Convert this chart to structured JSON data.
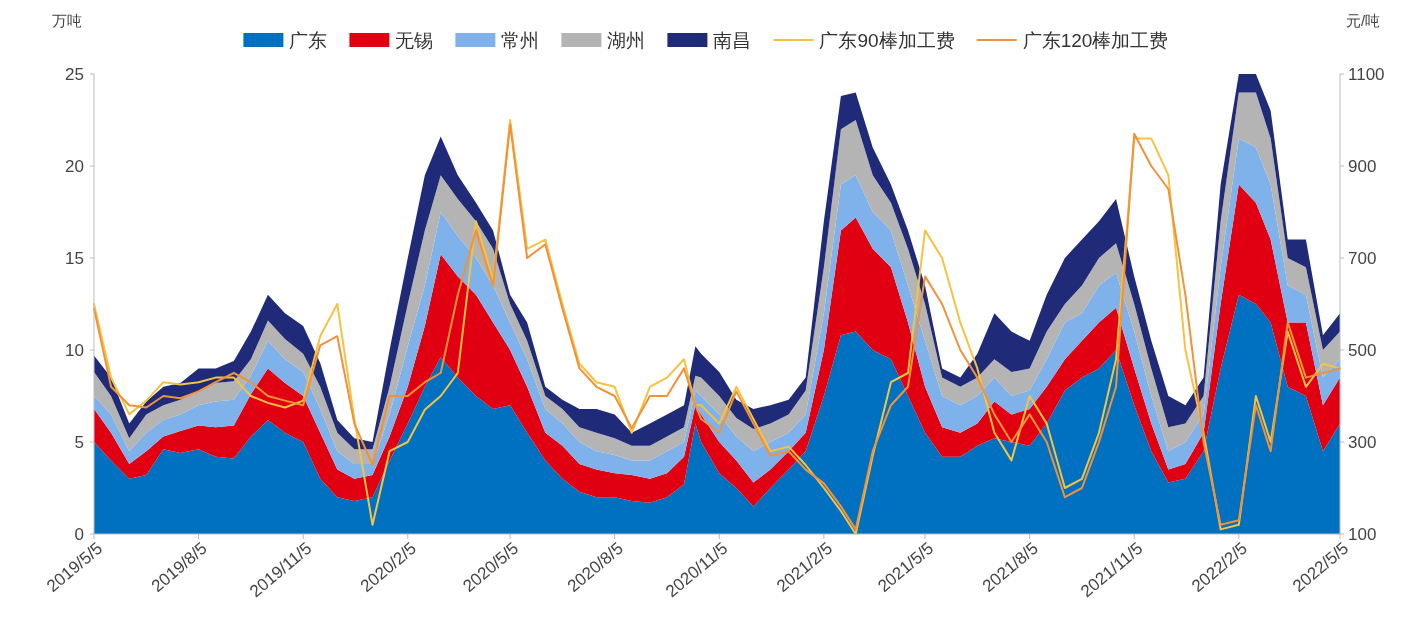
{
  "chart_data": {
    "type": "area",
    "stacked": true,
    "legend": "top",
    "ylabel": "万吨",
    "y2label": "元/吨",
    "xlim": [
      "2019-05-05",
      "2022-05-05"
    ],
    "xticks": [
      {
        "value": "2019-05-05",
        "label": "2019/5/5"
      },
      {
        "value": "2019-08-05",
        "label": "2019/8/5"
      },
      {
        "value": "2019-11-05",
        "label": "2019/11/5"
      },
      {
        "value": "2020-02-05",
        "label": "2020/2/5"
      },
      {
        "value": "2020-05-05",
        "label": "2020/5/5"
      },
      {
        "value": "2020-08-05",
        "label": "2020/8/5"
      },
      {
        "value": "2020-11-05",
        "label": "2020/11/5"
      },
      {
        "value": "2021-02-05",
        "label": "2021/2/5"
      },
      {
        "value": "2021-05-05",
        "label": "2021/5/5"
      },
      {
        "value": "2021-08-05",
        "label": "2021/8/5"
      },
      {
        "value": "2021-11-05",
        "label": "2021/11/5"
      },
      {
        "value": "2022-02-05",
        "label": "2022/2/5"
      },
      {
        "value": "2022-05-05",
        "label": "2022/5/5"
      }
    ],
    "ylim": [
      0,
      25
    ],
    "yticks": [
      0,
      5,
      10,
      15,
      20,
      25
    ],
    "y2lim": [
      100,
      1100
    ],
    "y2ticks": [
      100,
      300,
      500,
      700,
      900,
      1100
    ],
    "x": [
      "2019-05-05",
      "2019-05-20",
      "2019-06-05",
      "2019-06-20",
      "2019-07-05",
      "2019-07-20",
      "2019-08-05",
      "2019-08-20",
      "2019-09-05",
      "2019-09-20",
      "2019-10-05",
      "2019-10-20",
      "2019-11-05",
      "2019-11-20",
      "2019-12-05",
      "2019-12-20",
      "2020-01-05",
      "2020-01-20",
      "2020-02-05",
      "2020-02-20",
      "2020-03-05",
      "2020-03-20",
      "2020-04-05",
      "2020-04-20",
      "2020-05-05",
      "2020-05-20",
      "2020-06-05",
      "2020-06-20",
      "2020-07-05",
      "2020-07-20",
      "2020-08-05",
      "2020-08-20",
      "2020-09-05",
      "2020-09-20",
      "2020-10-05",
      "2020-10-15",
      "2020-10-20",
      "2020-11-05",
      "2020-11-20",
      "2020-12-05",
      "2020-12-20",
      "2021-01-05",
      "2021-01-20",
      "2021-02-05",
      "2021-02-20",
      "2021-03-05",
      "2021-03-20",
      "2021-04-05",
      "2021-04-20",
      "2021-05-05",
      "2021-05-20",
      "2021-06-05",
      "2021-06-20",
      "2021-07-05",
      "2021-07-20",
      "2021-08-05",
      "2021-08-20",
      "2021-09-05",
      "2021-09-20",
      "2021-10-05",
      "2021-10-20",
      "2021-11-05",
      "2021-11-20",
      "2021-12-05",
      "2021-12-20",
      "2022-01-05",
      "2022-01-20",
      "2022-02-05",
      "2022-02-20",
      "2022-03-05",
      "2022-03-20",
      "2022-04-05",
      "2022-04-20",
      "2022-05-05"
    ],
    "series": [
      {
        "name": "广东",
        "color": "#0070c0",
        "values": [
          5.0,
          4.0,
          3.0,
          3.2,
          4.6,
          4.4,
          4.6,
          4.2,
          4.1,
          5.3,
          6.2,
          5.5,
          5.0,
          3.0,
          2.0,
          1.8,
          2.0,
          4.0,
          6.0,
          8.0,
          9.6,
          8.5,
          7.5,
          6.8,
          7.0,
          5.5,
          4.0,
          3.0,
          2.3,
          2.0,
          2.0,
          1.8,
          1.7,
          2.0,
          2.7,
          6.0,
          5.0,
          3.3,
          2.5,
          1.5,
          2.5,
          3.5,
          4.5,
          7.5,
          10.8,
          11.0,
          10.0,
          9.5,
          7.5,
          5.5,
          4.2,
          4.2,
          4.8,
          5.2,
          5.0,
          4.8,
          6.0,
          7.8,
          8.5,
          9.0,
          10.0,
          7.0,
          4.5,
          2.8,
          3.0,
          4.5,
          9.0,
          13.0,
          12.5,
          11.5,
          8.0,
          7.5,
          4.5,
          6.0
        ]
      },
      {
        "name": "无锡",
        "color": "#e00012",
        "values": [
          1.8,
          1.5,
          0.8,
          1.3,
          0.7,
          1.2,
          1.3,
          1.6,
          1.8,
          2.3,
          2.8,
          2.7,
          2.5,
          2.5,
          1.5,
          1.2,
          1.2,
          1.3,
          2.0,
          3.3,
          5.6,
          5.5,
          5.5,
          4.7,
          3.0,
          2.5,
          1.5,
          1.8,
          1.5,
          1.5,
          1.3,
          1.4,
          1.3,
          1.3,
          1.5,
          1.0,
          1.5,
          1.7,
          1.5,
          1.3,
          1.0,
          1.0,
          1.0,
          2.5,
          5.7,
          6.2,
          5.5,
          5.0,
          4.0,
          2.5,
          1.6,
          1.3,
          1.2,
          2.0,
          1.5,
          2.0,
          2.0,
          1.7,
          2.0,
          2.5,
          2.3,
          2.0,
          1.5,
          0.7,
          0.8,
          1.0,
          3.5,
          6.0,
          5.5,
          4.5,
          3.5,
          4.0,
          2.5,
          2.5
        ]
      },
      {
        "name": "常州",
        "color": "#7fb2ea",
        "values": [
          0.7,
          1.0,
          0.7,
          1.0,
          0.9,
          0.9,
          1.1,
          1.4,
          1.4,
          1.0,
          1.5,
          1.3,
          1.3,
          1.3,
          1.0,
          0.8,
          0.6,
          1.2,
          2.2,
          2.2,
          2.3,
          2.2,
          2.0,
          2.0,
          1.5,
          1.5,
          1.3,
          1.2,
          1.2,
          1.0,
          1.0,
          0.8,
          1.0,
          1.2,
          0.8,
          0.8,
          1.0,
          1.5,
          1.3,
          1.7,
          1.5,
          1.0,
          1.0,
          2.0,
          2.5,
          2.3,
          2.0,
          2.0,
          2.0,
          2.5,
          1.7,
          1.5,
          1.5,
          1.3,
          1.0,
          1.0,
          1.5,
          2.0,
          1.5,
          2.0,
          1.9,
          2.0,
          1.5,
          1.0,
          1.2,
          1.0,
          2.0,
          2.5,
          3.0,
          3.0,
          2.0,
          1.5,
          1.5,
          1.0
        ]
      },
      {
        "name": "湖州",
        "color": "#b4b4b4",
        "values": [
          1.3,
          1.0,
          0.7,
          1.0,
          0.8,
          0.8,
          0.8,
          1.0,
          1.0,
          0.9,
          1.1,
          1.1,
          1.0,
          1.2,
          1.0,
          0.8,
          0.8,
          1.5,
          2.3,
          3.0,
          2.0,
          2.0,
          2.0,
          2.0,
          1.0,
          1.0,
          0.7,
          0.8,
          0.8,
          1.0,
          0.9,
          0.8,
          0.8,
          0.8,
          0.8,
          0.8,
          1.0,
          1.0,
          1.0,
          1.2,
          1.0,
          1.0,
          1.3,
          2.5,
          3.0,
          3.0,
          2.0,
          1.5,
          2.0,
          2.0,
          1.0,
          1.0,
          1.0,
          1.0,
          1.3,
          1.2,
          1.5,
          1.0,
          1.5,
          1.5,
          1.6,
          1.5,
          1.5,
          1.3,
          1.0,
          1.0,
          2.5,
          2.5,
          3.0,
          2.5,
          1.5,
          1.5,
          1.5,
          1.5
        ]
      },
      {
        "name": "南昌",
        "color": "#1f2a78",
        "values": [
          0.9,
          1.0,
          0.8,
          0.7,
          1.0,
          0.9,
          1.2,
          0.8,
          1.1,
          1.5,
          1.4,
          1.4,
          1.5,
          1.3,
          0.7,
          0.6,
          0.4,
          2.0,
          2.5,
          3.0,
          2.1,
          1.3,
          1.0,
          1.0,
          0.5,
          1.0,
          0.5,
          0.5,
          1.0,
          1.3,
          1.3,
          0.7,
          1.2,
          1.2,
          1.2,
          1.6,
          1.3,
          1.3,
          1.0,
          1.1,
          1.0,
          0.8,
          0.7,
          2.5,
          1.8,
          1.5,
          1.5,
          1.0,
          1.0,
          1.0,
          0.5,
          0.5,
          1.3,
          2.5,
          2.2,
          1.5,
          2.0,
          2.5,
          2.5,
          2.0,
          2.4,
          1.5,
          1.5,
          1.7,
          1.0,
          1.0,
          2.0,
          1.0,
          1.0,
          1.5,
          1.0,
          1.5,
          0.8,
          1.0
        ]
      },
      {
        "name": "广东90棒加工费",
        "type": "line",
        "axis": "y2",
        "color": "#f5c342",
        "values": [
          600,
          440,
          360,
          390,
          430,
          425,
          430,
          440,
          440,
          400,
          385,
          375,
          390,
          530,
          600,
          350,
          120,
          280,
          300,
          370,
          400,
          450,
          780,
          650,
          1000,
          720,
          740,
          600,
          470,
          430,
          420,
          320,
          420,
          440,
          480,
          380,
          380,
          340,
          420,
          350,
          280,
          290,
          250,
          200,
          150,
          100,
          270,
          430,
          450,
          760,
          700,
          560,
          460,
          320,
          260,
          400,
          340,
          200,
          220,
          320,
          480,
          960,
          960,
          880,
          500,
          320,
          110,
          120,
          400,
          300,
          540,
          420,
          470,
          460
        ]
      },
      {
        "name": "广东120棒加工费",
        "type": "line",
        "axis": "y2",
        "color": "#f0923a",
        "values": [
          590,
          420,
          380,
          375,
          400,
          395,
          410,
          430,
          450,
          430,
          400,
          390,
          380,
          510,
          530,
          340,
          250,
          400,
          400,
          430,
          450,
          620,
          760,
          640,
          990,
          700,
          730,
          590,
          460,
          420,
          400,
          330,
          400,
          400,
          460,
          380,
          350,
          320,
          410,
          340,
          270,
          280,
          240,
          210,
          160,
          110,
          280,
          380,
          420,
          660,
          600,
          500,
          440,
          360,
          300,
          360,
          300,
          180,
          200,
          300,
          420,
          970,
          900,
          850,
          620,
          300,
          120,
          130,
          380,
          280,
          560,
          440,
          450,
          460
        ]
      }
    ]
  }
}
